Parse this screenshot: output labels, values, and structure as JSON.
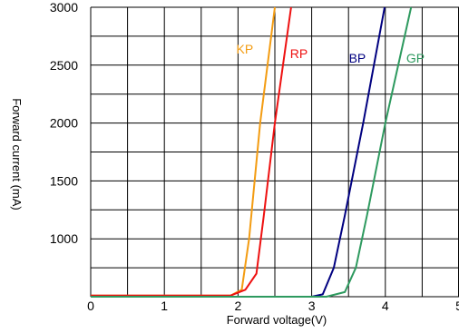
{
  "chart_data": {
    "type": "line",
    "xlabel": "Forward voltage(V)",
    "ylabel": "Forward current (mA)",
    "xlim": [
      0,
      5
    ],
    "ylim": [
      500,
      3000
    ],
    "x_ticks": [
      "0",
      "1",
      "2",
      "3",
      "4",
      "5"
    ],
    "y_ticks": [
      "1000",
      "1500",
      "2000",
      "2500",
      "3000"
    ],
    "grid": true,
    "series": [
      {
        "name": "KP",
        "color": "#f39c12",
        "points": [
          [
            0.0,
            510
          ],
          [
            1.9,
            510
          ],
          [
            2.05,
            560
          ],
          [
            2.15,
            1000
          ],
          [
            2.3,
            2000
          ],
          [
            2.5,
            3000
          ]
        ]
      },
      {
        "name": "RP",
        "color": "#ee1111",
        "points": [
          [
            0.0,
            510
          ],
          [
            1.9,
            510
          ],
          [
            2.1,
            560
          ],
          [
            2.25,
            700
          ],
          [
            2.35,
            1200
          ],
          [
            2.5,
            2000
          ],
          [
            2.72,
            3000
          ]
        ]
      },
      {
        "name": "BP",
        "color": "#000080",
        "points": [
          [
            0.0,
            500
          ],
          [
            3.0,
            500
          ],
          [
            3.15,
            520
          ],
          [
            3.3,
            750
          ],
          [
            3.45,
            1200
          ],
          [
            3.7,
            2000
          ],
          [
            3.99,
            3000
          ]
        ]
      },
      {
        "name": "GP",
        "color": "#2e9a5f",
        "points": [
          [
            0.0,
            500
          ],
          [
            3.2,
            500
          ],
          [
            3.45,
            540
          ],
          [
            3.6,
            750
          ],
          [
            3.75,
            1200
          ],
          [
            4.0,
            2000
          ],
          [
            4.35,
            3000
          ]
        ]
      }
    ]
  }
}
